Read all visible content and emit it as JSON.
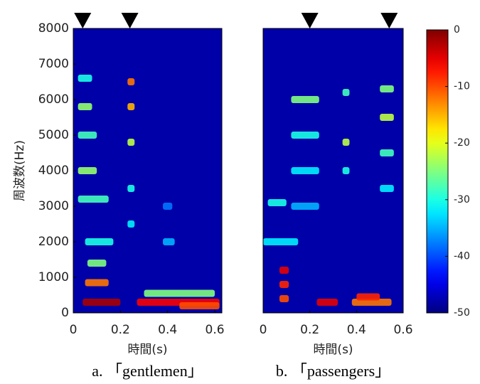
{
  "chart_data": [
    {
      "type": "spectrogram",
      "caption": "a. 「gentlemen」",
      "xlabel": "時間(s)",
      "ylabel": "周波数(Hz)",
      "xlim": [
        0,
        0.63
      ],
      "xticks": [
        0,
        0.2,
        0.4,
        0.6
      ],
      "ylim": [
        0,
        8000
      ],
      "yticks": [
        0,
        1000,
        2000,
        3000,
        4000,
        5000,
        6000,
        7000,
        8000
      ],
      "markers": [
        0.04,
        0.24
      ],
      "features": [
        {
          "t": [
            0.04,
            0.2
          ],
          "f": 300,
          "db": -2
        },
        {
          "t": [
            0.27,
            0.62
          ],
          "f": 300,
          "db": -6
        },
        {
          "t": [
            0.05,
            0.15
          ],
          "f": 850,
          "db": -12
        },
        {
          "t": [
            0.06,
            0.14
          ],
          "f": 1400,
          "db": -25
        },
        {
          "t": [
            0.05,
            0.17
          ],
          "f": 2000,
          "db": -30
        },
        {
          "t": [
            0.02,
            0.15
          ],
          "f": 3200,
          "db": -28
        },
        {
          "t": [
            0.02,
            0.1
          ],
          "f": 4000,
          "db": -24
        },
        {
          "t": [
            0.02,
            0.1
          ],
          "f": 5000,
          "db": -28
        },
        {
          "t": [
            0.02,
            0.08
          ],
          "f": 5800,
          "db": -24
        },
        {
          "t": [
            0.02,
            0.08
          ],
          "f": 6600,
          "db": -30
        },
        {
          "t": [
            0.23,
            0.26
          ],
          "f": 6500,
          "db": -12
        },
        {
          "t": [
            0.23,
            0.26
          ],
          "f": 5800,
          "db": -15
        },
        {
          "t": [
            0.23,
            0.26
          ],
          "f": 4800,
          "db": -22
        },
        {
          "t": [
            0.23,
            0.26
          ],
          "f": 3500,
          "db": -30
        },
        {
          "t": [
            0.23,
            0.26
          ],
          "f": 2500,
          "db": -32
        },
        {
          "t": [
            0.3,
            0.6
          ],
          "f": 550,
          "db": -25
        },
        {
          "t": [
            0.45,
            0.62
          ],
          "f": 200,
          "db": -10
        },
        {
          "t": [
            0.38,
            0.43
          ],
          "f": 2000,
          "db": -35
        },
        {
          "t": [
            0.38,
            0.42
          ],
          "f": 3000,
          "db": -38
        }
      ]
    },
    {
      "type": "spectrogram",
      "caption": "b.  「passengers」",
      "xlabel": "時間(s)",
      "xlim": [
        0,
        0.6
      ],
      "xticks": [
        0,
        0.2,
        0.4,
        0.6
      ],
      "ylim": [
        0,
        8000
      ],
      "markers": [
        0.2,
        0.54
      ],
      "features": [
        {
          "t": [
            0.07,
            0.11
          ],
          "f": 1200,
          "db": -5
        },
        {
          "t": [
            0.07,
            0.11
          ],
          "f": 800,
          "db": -8
        },
        {
          "t": [
            0.07,
            0.11
          ],
          "f": 400,
          "db": -10
        },
        {
          "t": [
            0.23,
            0.32
          ],
          "f": 300,
          "db": -5
        },
        {
          "t": [
            0.38,
            0.55
          ],
          "f": 300,
          "db": -12
        },
        {
          "t": [
            0.4,
            0.5
          ],
          "f": 450,
          "db": -8
        },
        {
          "t": [
            0.12,
            0.24
          ],
          "f": 6000,
          "db": -25
        },
        {
          "t": [
            0.12,
            0.24
          ],
          "f": 5000,
          "db": -30
        },
        {
          "t": [
            0.12,
            0.24
          ],
          "f": 4000,
          "db": -32
        },
        {
          "t": [
            0.12,
            0.24
          ],
          "f": 3000,
          "db": -35
        },
        {
          "t": [
            0.34,
            0.37
          ],
          "f": 6200,
          "db": -28
        },
        {
          "t": [
            0.34,
            0.37
          ],
          "f": 4800,
          "db": -22
        },
        {
          "t": [
            0.34,
            0.37
          ],
          "f": 4000,
          "db": -30
        },
        {
          "t": [
            0.5,
            0.56
          ],
          "f": 6300,
          "db": -25
        },
        {
          "t": [
            0.5,
            0.56
          ],
          "f": 5500,
          "db": -22
        },
        {
          "t": [
            0.5,
            0.56
          ],
          "f": 4500,
          "db": -28
        },
        {
          "t": [
            0.5,
            0.56
          ],
          "f": 3500,
          "db": -32
        },
        {
          "t": [
            0.0,
            0.15
          ],
          "f": 2000,
          "db": -32
        },
        {
          "t": [
            0.02,
            0.1
          ],
          "f": 3100,
          "db": -30
        }
      ]
    },
    {
      "type": "colorbar",
      "clim": [
        -50,
        0
      ],
      "ticks": [
        0,
        -10,
        -20,
        -30,
        -40,
        -50
      ]
    }
  ]
}
